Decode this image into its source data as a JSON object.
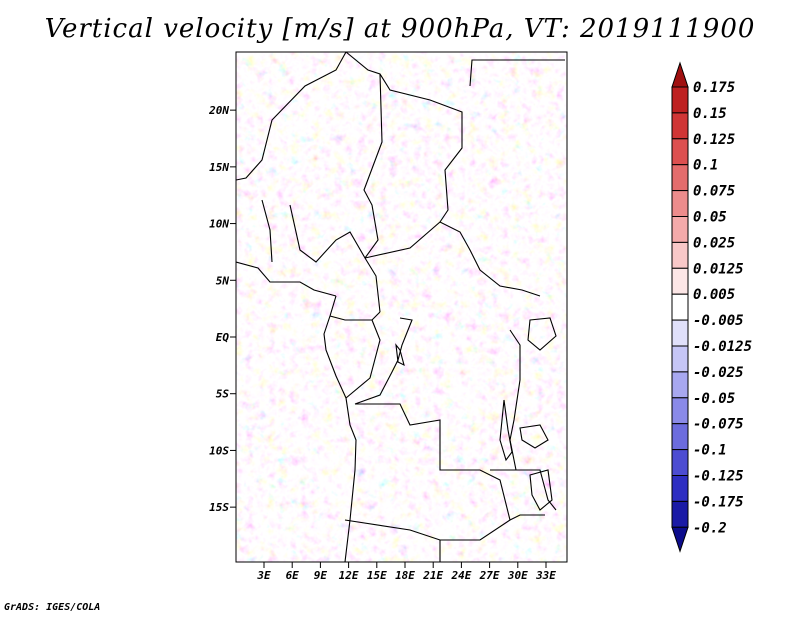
{
  "title": "Vertical velocity [m/s] at 900hPa, VT: 2019111900",
  "credit": "GrADS: IGES/COLA",
  "map": {
    "lon_range": [
      0,
      35
    ],
    "lat_range": [
      -19,
      25
    ],
    "lat_ticks": [
      {
        "lat": 20,
        "label": "20N"
      },
      {
        "lat": 15,
        "label": "15N"
      },
      {
        "lat": 10,
        "label": "10N"
      },
      {
        "lat": 5,
        "label": "5N"
      },
      {
        "lat": 0,
        "label": "EQ"
      },
      {
        "lat": -5,
        "label": "5S"
      },
      {
        "lat": -10,
        "label": "10S"
      },
      {
        "lat": -15,
        "label": "15S"
      }
    ],
    "lon_ticks": [
      {
        "lon": 3,
        "label": "3E"
      },
      {
        "lon": 6,
        "label": "6E"
      },
      {
        "lon": 9,
        "label": "9E"
      },
      {
        "lon": 12,
        "label": "12E"
      },
      {
        "lon": 15,
        "label": "15E"
      },
      {
        "lon": 18,
        "label": "18E"
      },
      {
        "lon": 21,
        "label": "21E"
      },
      {
        "lon": 24,
        "label": "24E"
      },
      {
        "lon": 27,
        "label": "27E"
      },
      {
        "lon": 30,
        "label": "30E"
      },
      {
        "lon": 33,
        "label": "33E"
      }
    ]
  },
  "colorbar": {
    "labels": [
      "0.175",
      "0.15",
      "0.125",
      "0.1",
      "0.075",
      "0.05",
      "0.025",
      "0.0125",
      "0.005",
      "-0.005",
      "-0.0125",
      "-0.025",
      "-0.05",
      "-0.075",
      "-0.1",
      "-0.125",
      "-0.175",
      "-0.2"
    ],
    "colors": [
      "#a01010",
      "#be2020",
      "#d03535",
      "#dc5050",
      "#e46c6c",
      "#ec8c8c",
      "#f4aaaa",
      "#f8c8c8",
      "#fce6e6",
      "#ffffff",
      "#e0e0fa",
      "#c6c6f6",
      "#a8a8f0",
      "#8a8ae8",
      "#6c6cde",
      "#4c4cd2",
      "#2e2ec2",
      "#1a1aa6",
      "#0c0c8c"
    ]
  }
}
